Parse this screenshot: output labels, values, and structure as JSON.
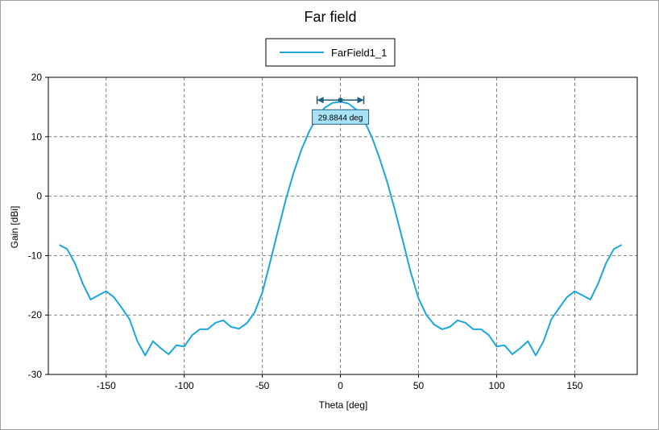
{
  "chart_data": {
    "type": "line",
    "title": "Far field",
    "xlabel": "Theta [deg]",
    "ylabel": "Gain [dBi]",
    "xlim": [
      -187,
      190
    ],
    "ylim": [
      -30,
      20
    ],
    "xticks": [
      -150,
      -100,
      -50,
      0,
      50,
      100,
      150
    ],
    "yticks": [
      20,
      10,
      0,
      -10,
      -20,
      -30
    ],
    "grid": true,
    "legend_position": "top-center",
    "series": [
      {
        "name": "FarField1_1",
        "color": "#1ca7dc",
        "x": [
          -180,
          -175,
          -170,
          -165,
          -160,
          -155,
          -150,
          -145,
          -140,
          -135,
          -130,
          -125,
          -120,
          -115,
          -110,
          -105,
          -100,
          -95,
          -90,
          -85,
          -80,
          -75,
          -70,
          -65,
          -60,
          -55,
          -50,
          -45,
          -40,
          -35,
          -30,
          -25,
          -20,
          -15,
          -10,
          -5,
          0,
          5,
          10,
          15,
          20,
          25,
          30,
          35,
          40,
          45,
          50,
          55,
          60,
          65,
          70,
          75,
          80,
          85,
          90,
          95,
          100,
          105,
          110,
          115,
          120,
          125,
          130,
          135,
          140,
          145,
          150,
          155,
          160,
          165,
          170,
          175,
          180
        ],
        "y": [
          -8.2,
          -8.9,
          -11.3,
          -14.7,
          -17.4,
          -16.7,
          -16.0,
          -17.0,
          -18.8,
          -20.7,
          -24.4,
          -26.8,
          -24.4,
          -25.6,
          -26.6,
          -25.1,
          -25.3,
          -23.4,
          -22.4,
          -22.4,
          -21.3,
          -20.9,
          -22.0,
          -22.3,
          -21.4,
          -19.6,
          -16.2,
          -11.1,
          -5.8,
          -0.6,
          3.9,
          7.8,
          10.9,
          13.3,
          14.9,
          15.7,
          15.9,
          15.6,
          14.6,
          12.8,
          10.0,
          6.4,
          2.3,
          -2.5,
          -7.6,
          -12.8,
          -17.2,
          -20.0,
          -21.6,
          -22.4,
          -22.0,
          -20.9,
          -21.3,
          -22.4,
          -22.4,
          -23.4,
          -25.3,
          -25.1,
          -26.6,
          -25.6,
          -24.4,
          -26.8,
          -24.4,
          -20.7,
          -18.8,
          -17.0,
          -16.0,
          -16.7,
          -17.4,
          -14.7,
          -11.3,
          -8.9,
          -8.2
        ]
      }
    ],
    "annotation": {
      "label": "29.8844 deg",
      "peak_x": 0,
      "peak_y": 15.9,
      "x_from": -14.94,
      "x_to": 14.94
    }
  }
}
